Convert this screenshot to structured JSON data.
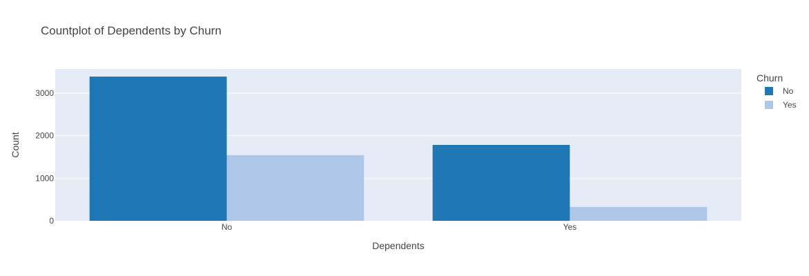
{
  "chart_data": {
    "type": "bar",
    "title": "Countplot of Dependents by Churn",
    "xlabel": "Dependents",
    "ylabel": "Count",
    "categories": [
      "No",
      "Yes"
    ],
    "series": [
      {
        "name": "No",
        "values": [
          3390,
          1784
        ],
        "color": "#1f77b4"
      },
      {
        "name": "Yes",
        "values": [
          1543,
          326
        ],
        "color": "#aec7e8"
      }
    ],
    "ylim": [
      0,
      3568
    ],
    "yticks": [
      0,
      1000,
      2000,
      3000
    ],
    "legend": {
      "title": "Churn",
      "placement": "right"
    },
    "grid": true,
    "plot_bg": "#e5ecf6"
  }
}
